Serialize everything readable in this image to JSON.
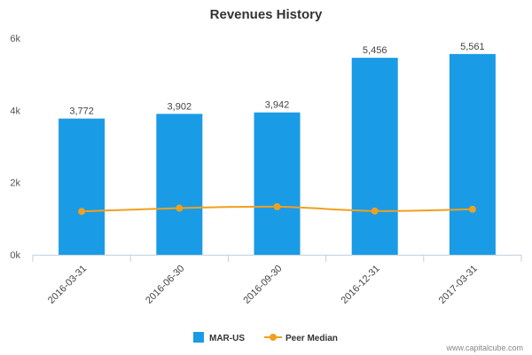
{
  "chart_data": {
    "type": "bar",
    "title": "Revenues History",
    "categories": [
      "2016-03-31",
      "2016-06-30",
      "2016-09-30",
      "2016-12-31",
      "2017-03-31"
    ],
    "series": [
      {
        "name": "MAR-US",
        "type": "bar",
        "values": [
          3772,
          3902,
          3942,
          5456,
          5561
        ],
        "labels": [
          "3,772",
          "3,902",
          "3,942",
          "5,456",
          "5,561"
        ],
        "color": "#1a9be6"
      },
      {
        "name": "Peer Median",
        "type": "line",
        "values": [
          1200,
          1290,
          1330,
          1210,
          1260
        ],
        "color": "#f0a020"
      }
    ],
    "ylim": [
      0,
      6000
    ],
    "yticks": [
      0,
      2000,
      4000,
      6000
    ],
    "ytick_labels": [
      "0k",
      "2k",
      "4k",
      "6k"
    ],
    "grid": false,
    "legend_position": "bottom"
  },
  "credit": "www.capitalcube.com"
}
